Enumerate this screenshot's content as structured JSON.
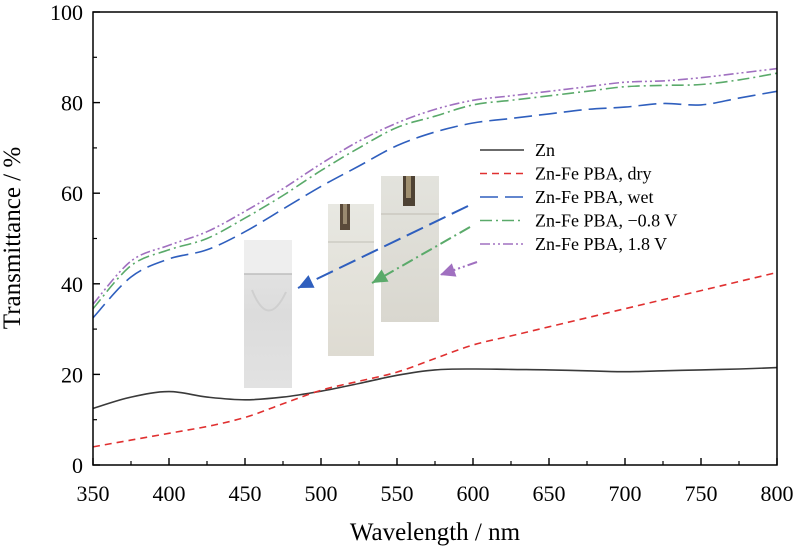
{
  "chart_data": {
    "type": "line",
    "xlabel": "Wavelength / nm",
    "ylabel": "Transmittance / %",
    "xlim": [
      350,
      800
    ],
    "ylim": [
      0,
      100
    ],
    "x_ticks": [
      350,
      400,
      450,
      500,
      550,
      600,
      650,
      700,
      750,
      800
    ],
    "y_ticks": [
      0,
      20,
      40,
      60,
      80,
      100
    ],
    "grid": false,
    "legend_position": "right",
    "x": [
      350,
      375,
      400,
      425,
      450,
      475,
      500,
      525,
      550,
      575,
      600,
      625,
      650,
      675,
      700,
      725,
      750,
      775,
      800
    ],
    "series": [
      {
        "name": "Zn",
        "color": "#3a3a3a",
        "dash": "solid",
        "values": [
          12.5,
          15.0,
          16.2,
          15.0,
          14.4,
          15.0,
          16.3,
          18.0,
          19.8,
          21.0,
          21.2,
          21.1,
          21.0,
          20.8,
          20.6,
          20.8,
          21.0,
          21.2,
          21.5
        ]
      },
      {
        "name": "Zn-Fe PBA, dry",
        "color": "#e03030",
        "dash": "dash",
        "values": [
          4.0,
          5.5,
          7.0,
          8.5,
          10.5,
          13.5,
          16.5,
          18.5,
          20.5,
          23.5,
          26.5,
          28.5,
          30.5,
          32.5,
          34.5,
          36.5,
          38.5,
          40.5,
          42.5
        ]
      },
      {
        "name": "Zn-Fe PBA, wet",
        "color": "#2f5fbe",
        "dash": "longdash",
        "values": [
          32.5,
          41.5,
          45.5,
          47.5,
          51.5,
          56.5,
          61.5,
          66.0,
          70.5,
          73.5,
          75.5,
          76.5,
          77.5,
          78.5,
          79.0,
          79.8,
          79.5,
          81.0,
          82.5
        ]
      },
      {
        "name": "Zn-Fe PBA, −0.8 V",
        "color": "#5aaa6a",
        "dash": "dashdot",
        "values": [
          34.5,
          44.0,
          47.5,
          50.0,
          54.5,
          59.5,
          65.0,
          70.0,
          74.5,
          77.0,
          79.5,
          80.5,
          81.5,
          82.5,
          83.5,
          83.8,
          84.0,
          85.0,
          86.5
        ]
      },
      {
        "name": "Zn-Fe PBA, 1.8  V",
        "color": "#a070c0",
        "dash": "dashdotdot",
        "values": [
          35.5,
          45.0,
          48.5,
          51.5,
          56.0,
          61.0,
          66.5,
          71.5,
          75.5,
          78.5,
          80.5,
          81.5,
          82.5,
          83.5,
          84.5,
          84.8,
          85.5,
          86.5,
          87.5
        ]
      }
    ],
    "photo_arrows": [
      {
        "color": "#2f5fbe"
      },
      {
        "color": "#5aaa6a"
      },
      {
        "color": "#a070c0"
      }
    ]
  }
}
